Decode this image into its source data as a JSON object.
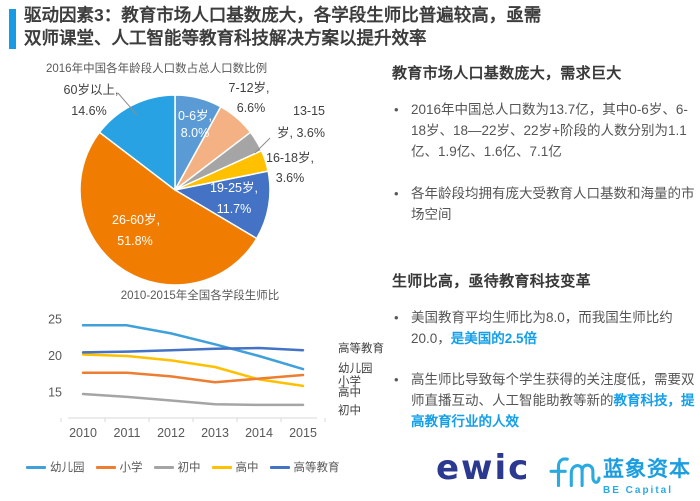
{
  "colors": {
    "accent": "#189BE4",
    "highlight": "#149FE8",
    "ewic_blue": "#2B3990",
    "lanxiang_blue": "#1B9DE0",
    "axis_gray": "#D9D9D9",
    "label_dark": "#404040"
  },
  "title": {
    "line1": "驱动因素3：教育市场人口基数庞大，各学段生师比普遍较高，亟需",
    "line2": "双师课堂、人工智能等教育科技解决方案以提升效率"
  },
  "chart_data": [
    {
      "type": "pie",
      "title": "2016年中国各年龄段人口数占总人口数比例",
      "unit": "%",
      "segments": [
        {
          "label": "0-6岁",
          "value": 8.0,
          "color": "#5B9BD5",
          "label_lines": [
            "0-6岁,",
            "8.0%"
          ]
        },
        {
          "label": "7-12岁",
          "value": 6.6,
          "color": "#F4B183",
          "label_lines": [
            "7-12岁,",
            "6.6%"
          ]
        },
        {
          "label": "13-15岁",
          "value": 3.6,
          "color": "#A5A5A5",
          "label_lines": [
            "13-15",
            "岁, 3.6%"
          ]
        },
        {
          "label": "16-18岁",
          "value": 3.6,
          "color": "#FFC000",
          "label_lines": [
            "16-18岁,",
            "3.6%"
          ]
        },
        {
          "label": "19-25岁",
          "value": 11.7,
          "color": "#4472C4",
          "label_lines": [
            "19-25岁,",
            "11.7%"
          ]
        },
        {
          "label": "26-60岁",
          "value": 51.8,
          "color": "#F07D02",
          "label_lines": [
            "26-60岁,",
            "51.8%"
          ]
        },
        {
          "label": "60岁以上",
          "value": 14.6,
          "color": "#29A2E4",
          "label_lines": [
            "60岁以上,",
            "14.6%"
          ]
        }
      ]
    },
    {
      "type": "line",
      "title": "2010-2015年全国各学段生师比",
      "x": [
        2010,
        2011,
        2012,
        2013,
        2014,
        2015
      ],
      "yticks": [
        15,
        20,
        25
      ],
      "ylim": [
        11.5,
        26
      ],
      "grid": false,
      "legend_position": "bottom",
      "series": [
        {
          "name": "幼儿园",
          "color": "#3FA0DC",
          "values": [
            24.2,
            24.2,
            23.1,
            21.6,
            20.0,
            18.2
          ]
        },
        {
          "name": "高中",
          "color": "#FFC000",
          "values": [
            20.2,
            20.0,
            19.4,
            18.5,
            16.8,
            15.9
          ]
        },
        {
          "name": "小学",
          "color": "#ED7D31",
          "values": [
            17.7,
            17.7,
            17.2,
            16.4,
            16.9,
            17.4
          ]
        },
        {
          "name": "初中",
          "color": "#A5A5A5",
          "values": [
            14.8,
            14.4,
            13.9,
            13.4,
            13.3,
            13.3
          ]
        },
        {
          "name": "高等教育",
          "color": "#4472C4",
          "values": [
            20.5,
            20.6,
            20.8,
            21.0,
            21.1,
            20.8
          ]
        }
      ],
      "legend": [
        "幼儿园",
        "小学",
        "初中",
        "高中",
        "高等教育"
      ],
      "right_labels": [
        "高等教育",
        "幼儿园",
        "小学",
        "高中",
        "初中"
      ]
    }
  ],
  "right_panel": {
    "section1": {
      "heading": "教育市场人口基数庞大，需求巨大",
      "bullets": [
        "2016年中国总人口数为13.7亿，其中0-6岁、6-18岁、18—22岁、22岁+阶段的人数分别为1.1亿、1.9亿、1.6亿、7.1亿",
        "各年龄段均拥有庞大受教育人口基数和海量的市场空间"
      ]
    },
    "section2": {
      "heading": "生师比高，亟待教育科技变革",
      "bullets": [
        {
          "normal": "美国教育平均生师比为8.0，而我国生师比约20.0，",
          "highlight": "是美国的2.5倍"
        },
        {
          "normal": "高生师比导致每个学生获得的关注度低，需要双师直播互动、人工智能助教等新的",
          "highlight": "教育科技，提高教育行业的人效"
        }
      ]
    }
  },
  "footer": {
    "ewic_text": "ewic",
    "lanxiang_name": "蓝象资本",
    "lanxiang_sub": "BE Capital"
  }
}
